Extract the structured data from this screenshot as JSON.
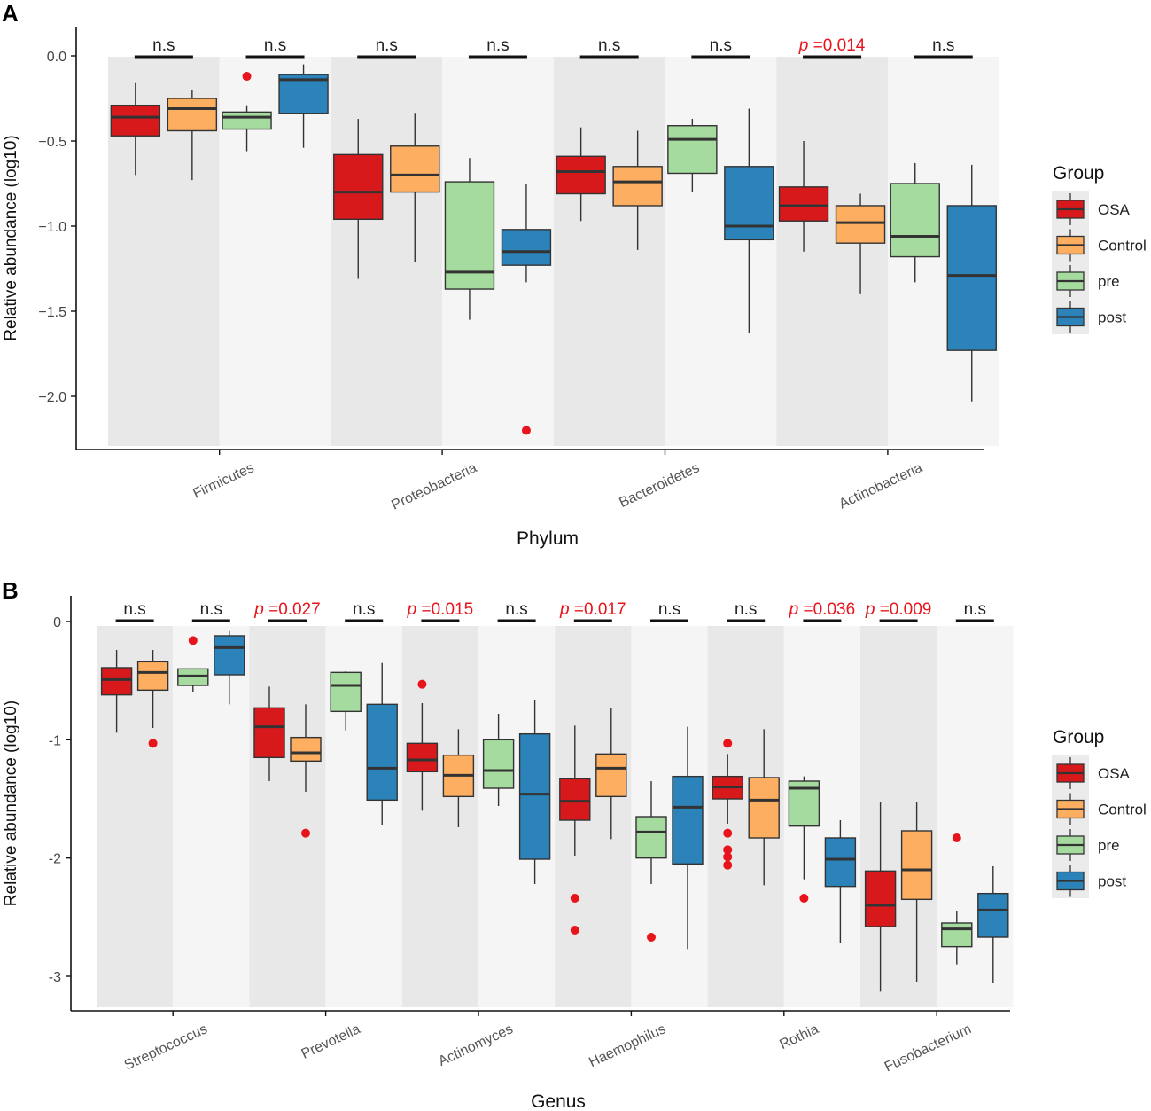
{
  "colors": {
    "OSA": "#D7191C",
    "Control": "#FDAE61",
    "pre": "#A6DBA0",
    "post": "#2B83BA",
    "band_dark": "#E8E8E8",
    "band_light": "#F5F5F5",
    "significant": "#E8141B",
    "outlier": "#E8141B",
    "text": "#222222"
  },
  "legend": {
    "title": "Group",
    "items": [
      "OSA",
      "Control",
      "pre",
      "post"
    ]
  },
  "chart_data": [
    {
      "type": "box",
      "panel_label": "A",
      "xlabel": "Phylum",
      "ylabel": "Relative abundance (log10)",
      "ylim": [
        -2.3,
        0.02
      ],
      "yticks": [
        0.0,
        -0.5,
        -1.0,
        -1.5,
        -2.0
      ],
      "ytick_labels": [
        "0.0",
        "−0.5",
        "−1.0",
        "−1.5",
        "−2.0"
      ],
      "categories": [
        "Firmicutes",
        "Proteobacteria",
        "Bacteroidetes",
        "Actinobacteria"
      ],
      "comparisons": [
        {
          "label": "n.s",
          "significant": false
        },
        {
          "label": "n.s",
          "significant": false
        },
        {
          "label": "n.s",
          "significant": false
        },
        {
          "label": "n.s",
          "significant": false
        },
        {
          "label": "n.s",
          "significant": false
        },
        {
          "label": "n.s",
          "significant": false
        },
        {
          "p_symbol": "p",
          "label": " =0.014",
          "significant": true
        },
        {
          "label": "n.s",
          "significant": false
        }
      ],
      "boxes": [
        [
          {
            "group": "OSA",
            "min": -0.7,
            "q1": -0.47,
            "median": -0.36,
            "q3": -0.29,
            "max": -0.16,
            "outliers": []
          },
          {
            "group": "Control",
            "min": -0.73,
            "q1": -0.44,
            "median": -0.31,
            "q3": -0.25,
            "max": -0.2,
            "outliers": []
          },
          {
            "group": "pre",
            "min": -0.56,
            "q1": -0.43,
            "median": -0.36,
            "q3": -0.33,
            "max": -0.29,
            "outliers": [
              -0.12
            ]
          },
          {
            "group": "post",
            "min": -0.54,
            "q1": -0.34,
            "median": -0.14,
            "q3": -0.11,
            "max": -0.05,
            "outliers": []
          }
        ],
        [
          {
            "group": "OSA",
            "min": -1.31,
            "q1": -0.96,
            "median": -0.8,
            "q3": -0.58,
            "max": -0.37,
            "outliers": []
          },
          {
            "group": "Control",
            "min": -1.21,
            "q1": -0.8,
            "median": -0.7,
            "q3": -0.53,
            "max": -0.34,
            "outliers": []
          },
          {
            "group": "pre",
            "min": -1.55,
            "q1": -1.37,
            "median": -1.27,
            "q3": -0.74,
            "max": -0.6,
            "outliers": []
          },
          {
            "group": "post",
            "min": -1.33,
            "q1": -1.23,
            "median": -1.15,
            "q3": -1.02,
            "max": -0.75,
            "outliers": [
              -2.2
            ]
          }
        ],
        [
          {
            "group": "OSA",
            "min": -0.97,
            "q1": -0.81,
            "median": -0.68,
            "q3": -0.59,
            "max": -0.42,
            "outliers": []
          },
          {
            "group": "Control",
            "min": -1.14,
            "q1": -0.88,
            "median": -0.74,
            "q3": -0.65,
            "max": -0.44,
            "outliers": []
          },
          {
            "group": "pre",
            "min": -0.8,
            "q1": -0.69,
            "median": -0.49,
            "q3": -0.41,
            "max": -0.37,
            "outliers": []
          },
          {
            "group": "post",
            "min": -1.63,
            "q1": -1.08,
            "median": -1.0,
            "q3": -0.65,
            "max": -0.31,
            "outliers": []
          }
        ],
        [
          {
            "group": "OSA",
            "min": -1.15,
            "q1": -0.97,
            "median": -0.88,
            "q3": -0.77,
            "max": -0.5,
            "outliers": []
          },
          {
            "group": "Control",
            "min": -1.4,
            "q1": -1.1,
            "median": -0.98,
            "q3": -0.88,
            "max": -0.81,
            "outliers": []
          },
          {
            "group": "pre",
            "min": -1.33,
            "q1": -1.18,
            "median": -1.06,
            "q3": -0.75,
            "max": -0.63,
            "outliers": []
          },
          {
            "group": "post",
            "min": -2.03,
            "q1": -1.73,
            "median": -1.29,
            "q3": -0.88,
            "max": -0.64,
            "outliers": []
          }
        ]
      ]
    },
    {
      "type": "box",
      "panel_label": "B",
      "xlabel": "Genus",
      "ylabel": "Relative abundance (log10)",
      "ylim": [
        -3.25,
        0.02
      ],
      "yticks": [
        0,
        -1,
        -2,
        -3
      ],
      "ytick_labels": [
        "0",
        "-1",
        "-2",
        "-3"
      ],
      "categories": [
        "Streptococcus",
        "Prevotella",
        "Actinomyces",
        "Haemophilus",
        "Rothia",
        "Fusobacterium"
      ],
      "comparisons": [
        {
          "label": "n.s",
          "significant": false
        },
        {
          "label": "n.s",
          "significant": false
        },
        {
          "p_symbol": "p",
          "label": " =0.027",
          "significant": true
        },
        {
          "label": "n.s",
          "significant": false
        },
        {
          "p_symbol": "p",
          "label": " =0.015",
          "significant": true
        },
        {
          "label": "n.s",
          "significant": false
        },
        {
          "p_symbol": "p",
          "label": " =0.017",
          "significant": true
        },
        {
          "label": "n.s",
          "significant": false
        },
        {
          "label": "n.s",
          "significant": false
        },
        {
          "p_symbol": "p",
          "label": " =0.036",
          "significant": true
        },
        {
          "p_symbol": "p",
          "label": " =0.009",
          "significant": true
        },
        {
          "label": "n.s",
          "significant": false
        }
      ],
      "boxes": [
        [
          {
            "group": "OSA",
            "min": -0.94,
            "q1": -0.62,
            "median": -0.49,
            "q3": -0.39,
            "max": -0.24,
            "outliers": []
          },
          {
            "group": "Control",
            "min": -0.9,
            "q1": -0.58,
            "median": -0.43,
            "q3": -0.34,
            "max": -0.24,
            "outliers": [
              -1.03
            ]
          },
          {
            "group": "pre",
            "min": -0.6,
            "q1": -0.54,
            "median": -0.46,
            "q3": -0.4,
            "max": -0.4,
            "outliers": [
              -0.16
            ]
          },
          {
            "group": "post",
            "min": -0.7,
            "q1": -0.45,
            "median": -0.22,
            "q3": -0.12,
            "max": -0.08,
            "outliers": []
          }
        ],
        [
          {
            "group": "OSA",
            "min": -1.35,
            "q1": -1.15,
            "median": -0.89,
            "q3": -0.73,
            "max": -0.55,
            "outliers": []
          },
          {
            "group": "Control",
            "min": -1.44,
            "q1": -1.18,
            "median": -1.11,
            "q3": -0.98,
            "max": -0.7,
            "outliers": [
              -1.79
            ]
          },
          {
            "group": "pre",
            "min": -0.92,
            "q1": -0.76,
            "median": -0.54,
            "q3": -0.43,
            "max": -0.42,
            "outliers": []
          },
          {
            "group": "post",
            "min": -1.72,
            "q1": -1.51,
            "median": -1.24,
            "q3": -0.7,
            "max": -0.35,
            "outliers": []
          }
        ],
        [
          {
            "group": "OSA",
            "min": -1.6,
            "q1": -1.27,
            "median": -1.17,
            "q3": -1.03,
            "max": -0.69,
            "outliers": [
              -0.53
            ]
          },
          {
            "group": "Control",
            "min": -1.74,
            "q1": -1.48,
            "median": -1.3,
            "q3": -1.13,
            "max": -0.91,
            "outliers": []
          },
          {
            "group": "pre",
            "min": -1.56,
            "q1": -1.41,
            "median": -1.26,
            "q3": -1.0,
            "max": -0.78,
            "outliers": []
          },
          {
            "group": "post",
            "min": -2.22,
            "q1": -2.01,
            "median": -1.46,
            "q3": -0.95,
            "max": -0.66,
            "outliers": []
          }
        ],
        [
          {
            "group": "OSA",
            "min": -1.98,
            "q1": -1.68,
            "median": -1.52,
            "q3": -1.33,
            "max": -0.88,
            "outliers": [
              -2.34,
              -2.61
            ]
          },
          {
            "group": "Control",
            "min": -1.84,
            "q1": -1.48,
            "median": -1.24,
            "q3": -1.12,
            "max": -0.73,
            "outliers": []
          },
          {
            "group": "pre",
            "min": -2.22,
            "q1": -2.0,
            "median": -1.78,
            "q3": -1.65,
            "max": -1.35,
            "outliers": [
              -2.67
            ]
          },
          {
            "group": "post",
            "min": -2.77,
            "q1": -2.05,
            "median": -1.57,
            "q3": -1.31,
            "max": -0.89,
            "outliers": []
          }
        ],
        [
          {
            "group": "OSA",
            "min": -1.71,
            "q1": -1.5,
            "median": -1.4,
            "q3": -1.31,
            "max": -1.12,
            "outliers": [
              -1.03,
              -1.79,
              -1.93,
              -1.99,
              -2.06
            ]
          },
          {
            "group": "Control",
            "min": -2.23,
            "q1": -1.83,
            "median": -1.51,
            "q3": -1.32,
            "max": -0.91,
            "outliers": []
          },
          {
            "group": "pre",
            "min": -2.18,
            "q1": -1.73,
            "median": -1.41,
            "q3": -1.35,
            "max": -1.31,
            "outliers": [
              -2.34
            ]
          },
          {
            "group": "post",
            "min": -2.72,
            "q1": -2.24,
            "median": -2.01,
            "q3": -1.83,
            "max": -1.68,
            "outliers": []
          }
        ],
        [
          {
            "group": "OSA",
            "min": -3.13,
            "q1": -2.58,
            "median": -2.4,
            "q3": -2.11,
            "max": -1.53,
            "outliers": []
          },
          {
            "group": "Control",
            "min": -3.05,
            "q1": -2.35,
            "median": -2.1,
            "q3": -1.77,
            "max": -1.53,
            "outliers": []
          },
          {
            "group": "pre",
            "min": -2.9,
            "q1": -2.75,
            "median": -2.6,
            "q3": -2.55,
            "max": -2.45,
            "outliers": [
              -1.83
            ]
          },
          {
            "group": "post",
            "min": -3.06,
            "q1": -2.67,
            "median": -2.44,
            "q3": -2.3,
            "max": -2.07,
            "outliers": []
          }
        ]
      ]
    }
  ]
}
